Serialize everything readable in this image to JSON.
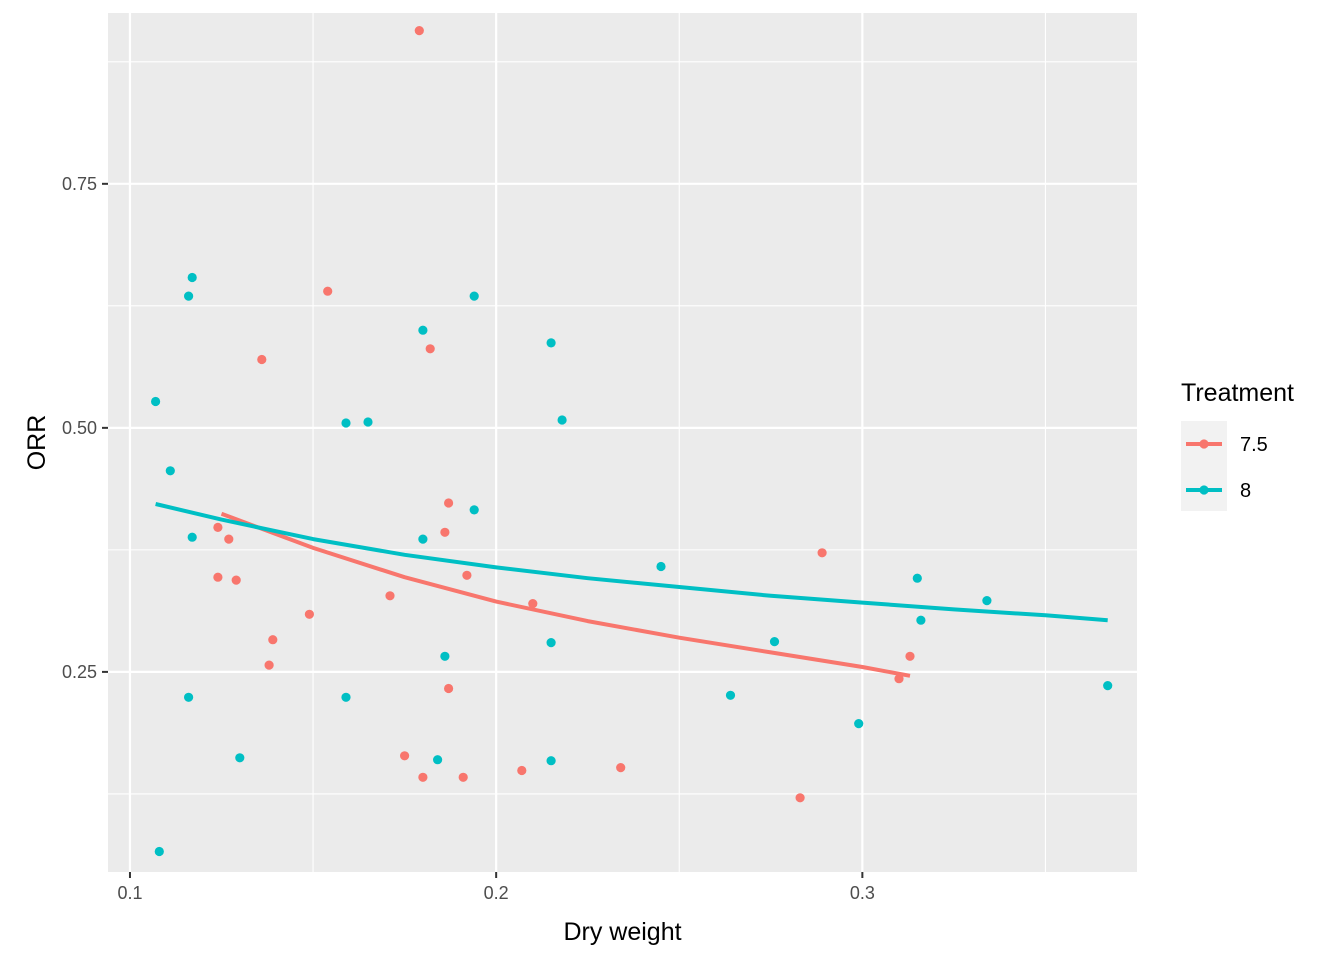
{
  "chart_data": {
    "type": "scatter",
    "title": "",
    "xlabel": "Dry weight",
    "ylabel": "ORR",
    "xlim": [
      0.094,
      0.375
    ],
    "ylim": [
      0.045,
      0.925
    ],
    "x_ticks": [
      0.1,
      0.2,
      0.3
    ],
    "x_tick_labels": [
      "0.1",
      "0.2",
      "0.3"
    ],
    "y_ticks": [
      0.25,
      0.5,
      0.75
    ],
    "y_tick_labels": [
      "0.25",
      "0.50",
      "0.75"
    ],
    "grid": true,
    "legend": {
      "title": "Treatment",
      "placement": "right"
    },
    "series": [
      {
        "name": "7.5",
        "color": "#F8766D",
        "points": [
          {
            "x": 0.179,
            "y": 0.907
          },
          {
            "x": 0.154,
            "y": 0.64
          },
          {
            "x": 0.136,
            "y": 0.57
          },
          {
            "x": 0.182,
            "y": 0.581
          },
          {
            "x": 0.187,
            "y": 0.423
          },
          {
            "x": 0.186,
            "y": 0.393
          },
          {
            "x": 0.124,
            "y": 0.398
          },
          {
            "x": 0.127,
            "y": 0.386
          },
          {
            "x": 0.124,
            "y": 0.347
          },
          {
            "x": 0.129,
            "y": 0.344
          },
          {
            "x": 0.192,
            "y": 0.349
          },
          {
            "x": 0.171,
            "y": 0.328
          },
          {
            "x": 0.21,
            "y": 0.32
          },
          {
            "x": 0.149,
            "y": 0.309
          },
          {
            "x": 0.139,
            "y": 0.283
          },
          {
            "x": 0.138,
            "y": 0.257
          },
          {
            "x": 0.187,
            "y": 0.233
          },
          {
            "x": 0.175,
            "y": 0.164
          },
          {
            "x": 0.18,
            "y": 0.142
          },
          {
            "x": 0.191,
            "y": 0.142
          },
          {
            "x": 0.207,
            "y": 0.149
          },
          {
            "x": 0.234,
            "y": 0.152
          },
          {
            "x": 0.289,
            "y": 0.372
          },
          {
            "x": 0.313,
            "y": 0.266
          },
          {
            "x": 0.31,
            "y": 0.243
          },
          {
            "x": 0.283,
            "y": 0.121
          }
        ],
        "trend": {
          "x": [
            0.125,
            0.15,
            0.175,
            0.2,
            0.225,
            0.25,
            0.275,
            0.3,
            0.313
          ],
          "y": [
            0.412,
            0.377,
            0.347,
            0.322,
            0.302,
            0.285,
            0.27,
            0.255,
            0.246
          ]
        }
      },
      {
        "name": "8",
        "color": "#00BFC4",
        "points": [
          {
            "x": 0.117,
            "y": 0.654
          },
          {
            "x": 0.116,
            "y": 0.635
          },
          {
            "x": 0.194,
            "y": 0.635
          },
          {
            "x": 0.18,
            "y": 0.6
          },
          {
            "x": 0.215,
            "y": 0.587
          },
          {
            "x": 0.107,
            "y": 0.527
          },
          {
            "x": 0.159,
            "y": 0.505
          },
          {
            "x": 0.165,
            "y": 0.506
          },
          {
            "x": 0.218,
            "y": 0.508
          },
          {
            "x": 0.111,
            "y": 0.456
          },
          {
            "x": 0.194,
            "y": 0.416
          },
          {
            "x": 0.117,
            "y": 0.388
          },
          {
            "x": 0.18,
            "y": 0.386
          },
          {
            "x": 0.245,
            "y": 0.358
          },
          {
            "x": 0.215,
            "y": 0.28
          },
          {
            "x": 0.186,
            "y": 0.266
          },
          {
            "x": 0.116,
            "y": 0.224
          },
          {
            "x": 0.159,
            "y": 0.224
          },
          {
            "x": 0.13,
            "y": 0.162
          },
          {
            "x": 0.184,
            "y": 0.16
          },
          {
            "x": 0.215,
            "y": 0.159
          },
          {
            "x": 0.108,
            "y": 0.066
          },
          {
            "x": 0.264,
            "y": 0.226
          },
          {
            "x": 0.276,
            "y": 0.281
          },
          {
            "x": 0.299,
            "y": 0.197
          },
          {
            "x": 0.315,
            "y": 0.346
          },
          {
            "x": 0.316,
            "y": 0.303
          },
          {
            "x": 0.334,
            "y": 0.323
          },
          {
            "x": 0.367,
            "y": 0.236
          }
        ],
        "trend": {
          "x": [
            0.107,
            0.125,
            0.15,
            0.175,
            0.2,
            0.225,
            0.25,
            0.275,
            0.3,
            0.325,
            0.35,
            0.367
          ],
          "y": [
            0.422,
            0.406,
            0.386,
            0.37,
            0.357,
            0.346,
            0.337,
            0.328,
            0.321,
            0.314,
            0.308,
            0.303
          ]
        }
      }
    ]
  }
}
